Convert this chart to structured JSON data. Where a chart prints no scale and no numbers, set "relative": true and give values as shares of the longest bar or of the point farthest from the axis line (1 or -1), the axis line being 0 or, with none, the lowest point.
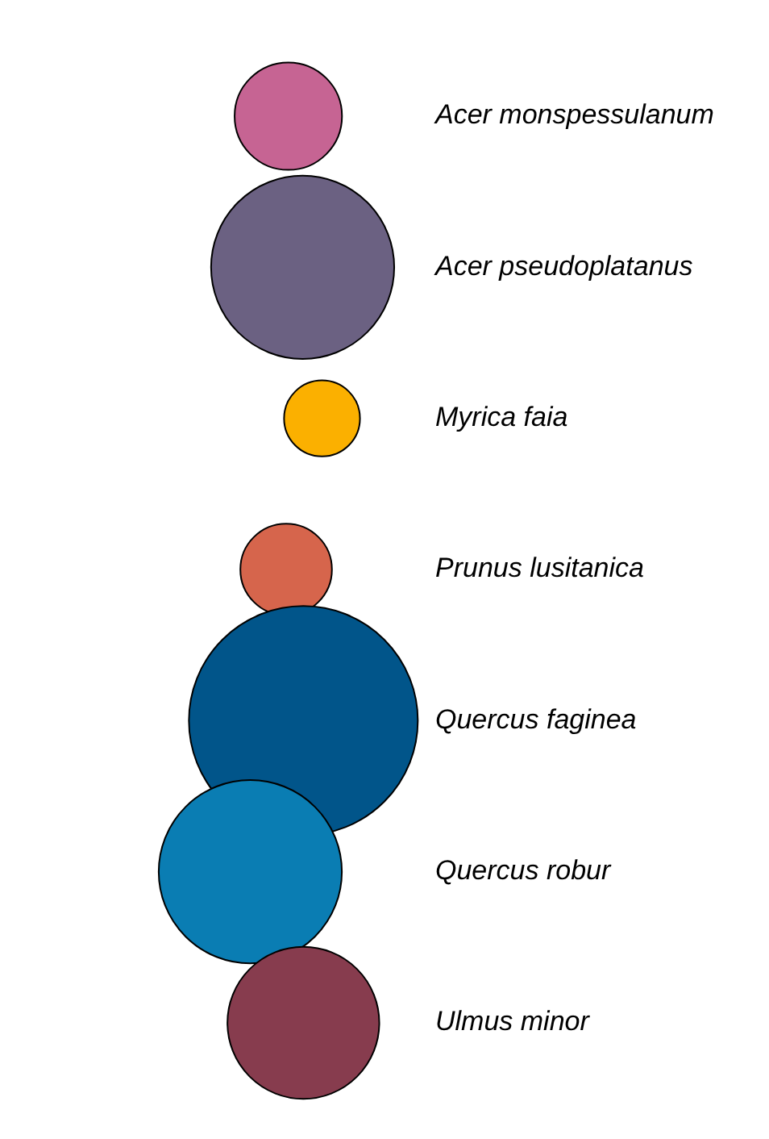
{
  "chart_data": {
    "type": "bubble",
    "orientation": "horizontal",
    "relative": true,
    "categories": [
      "Acer monspessulanum",
      "Acer pseudoplatanus",
      "Myrica faia",
      "Prunus lusitanica",
      "Quercus faginea",
      "Quercus robur",
      "Ulmus minor"
    ],
    "values": [
      0.53,
      0.73,
      1,
      0.5,
      0.74,
      0,
      0.74
    ],
    "sizes": [
      0.22,
      0.64,
      0.11,
      0.16,
      1,
      0.64,
      0.44
    ],
    "colors": [
      "#c66493",
      "#6b6182",
      "#fbb000",
      "#d6654c",
      "#01558a",
      "#0a7db3",
      "#873c4e"
    ]
  }
}
